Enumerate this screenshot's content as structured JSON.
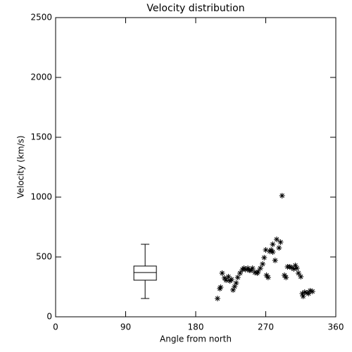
{
  "chart_data": {
    "type": "scatter",
    "title": "Velocity distribution",
    "x_label": "Angle from north",
    "y_label": "Velocity (km/s)",
    "xlim": [
      0,
      360
    ],
    "xticks": [
      0,
      90,
      180,
      270,
      360
    ],
    "ylim": [
      0,
      2500
    ],
    "yticks": [
      0,
      500,
      1000,
      1500,
      2000,
      2500
    ],
    "color": "#000000",
    "x": [
      208,
      211,
      212,
      214,
      217,
      219,
      222,
      224,
      226,
      228,
      230,
      232,
      234,
      237,
      240,
      242,
      244,
      247,
      249,
      251,
      253,
      256,
      259,
      260,
      263,
      266,
      268,
      270,
      271,
      273,
      275,
      277,
      279,
      279,
      282,
      284,
      287,
      289,
      291,
      294,
      296,
      298,
      301,
      303,
      306,
      308,
      310,
      312,
      315,
      317,
      318,
      320,
      323,
      325,
      327,
      330
    ],
    "values": [
      153,
      235,
      247,
      365,
      324,
      306,
      335,
      300,
      312,
      224,
      253,
      282,
      329,
      365,
      394,
      406,
      394,
      406,
      388,
      388,
      406,
      371,
      365,
      376,
      406,
      441,
      494,
      559,
      347,
      329,
      547,
      559,
      606,
      541,
      471,
      647,
      576,
      624,
      1012,
      347,
      329,
      418,
      418,
      412,
      400,
      429,
      406,
      365,
      335,
      194,
      171,
      206,
      200,
      194,
      218,
      212
    ],
    "box": {
      "x": 115,
      "whisker_low": 153,
      "q1": 306,
      "median": 370,
      "q3": 424,
      "whisker_high": 606
    }
  }
}
